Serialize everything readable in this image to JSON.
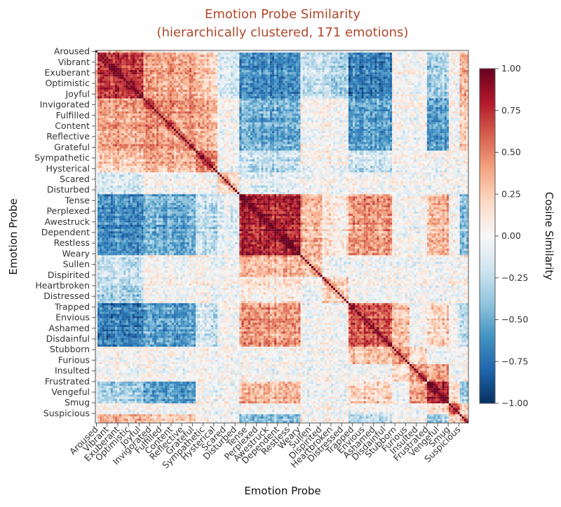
{
  "chart_data": {
    "type": "heatmap",
    "title": "Emotion Probe Similarity",
    "subtitle": "(hierarchically clustered, 171 emotions)",
    "xlabel": "Emotion Probe",
    "ylabel": "Emotion Probe",
    "n_emotions": 171,
    "tick_labels": [
      "Aroused",
      "Vibrant",
      "Exuberant",
      "Optimistic",
      "Joyful",
      "Invigorated",
      "Fulfilled",
      "Content",
      "Reflective",
      "Grateful",
      "Sympathetic",
      "Hysterical",
      "Scared",
      "Disturbed",
      "Tense",
      "Perplexed",
      "Awestruck",
      "Dependent",
      "Restless",
      "Weary",
      "Sullen",
      "Dispirited",
      "Heartbroken",
      "Distressed",
      "Trapped",
      "Envious",
      "Ashamed",
      "Disdainful",
      "Stubborn",
      "Furious",
      "Insulted",
      "Frustrated",
      "Vengeful",
      "Smug",
      "Suspicious"
    ],
    "clusters": [
      {
        "start": 0,
        "end": 1,
        "self": 0.6
      },
      {
        "start": 1,
        "end": 22,
        "self": 0.75
      },
      {
        "start": 22,
        "end": 46,
        "self": 0.45
      },
      {
        "start": 46,
        "end": 56,
        "self": 0.55
      },
      {
        "start": 56,
        "end": 66,
        "self": 0.2
      },
      {
        "start": 66,
        "end": 94,
        "self": 0.8
      },
      {
        "start": 94,
        "end": 104,
        "self": 0.3
      },
      {
        "start": 104,
        "end": 116,
        "self": 0.25
      },
      {
        "start": 116,
        "end": 136,
        "self": 0.65
      },
      {
        "start": 136,
        "end": 144,
        "self": 0.4
      },
      {
        "start": 144,
        "end": 152,
        "self": 0.45
      },
      {
        "start": 152,
        "end": 162,
        "self": 0.85
      },
      {
        "start": 162,
        "end": 167,
        "self": 0.55
      },
      {
        "start": 167,
        "end": 171,
        "self": 0.3
      }
    ],
    "cluster_similarity": [
      [
        1,
        0,
        0.25
      ],
      [
        1,
        2,
        0.4
      ],
      [
        1,
        3,
        0.25
      ],
      [
        2,
        3,
        0.35
      ],
      [
        1,
        5,
        -0.65
      ],
      [
        1,
        8,
        -0.7
      ],
      [
        2,
        5,
        -0.5
      ],
      [
        2,
        8,
        -0.55
      ],
      [
        1,
        6,
        -0.2
      ],
      [
        1,
        7,
        -0.3
      ],
      [
        1,
        11,
        -0.3
      ],
      [
        2,
        11,
        -0.55
      ],
      [
        5,
        8,
        0.45
      ],
      [
        5,
        6,
        0.35
      ],
      [
        5,
        11,
        0.35
      ],
      [
        8,
        11,
        0.25
      ],
      [
        5,
        7,
        0.1
      ],
      [
        8,
        9,
        0.3
      ],
      [
        9,
        10,
        0.2
      ],
      [
        10,
        11,
        0.45
      ],
      [
        11,
        12,
        0.2
      ],
      [
        1,
        13,
        0.35
      ],
      [
        2,
        13,
        0.25
      ],
      [
        5,
        13,
        -0.45
      ],
      [
        8,
        13,
        -0.3
      ],
      [
        11,
        13,
        -0.35
      ],
      [
        12,
        13,
        0.2
      ],
      [
        3,
        5,
        -0.25
      ],
      [
        3,
        8,
        -0.2
      ],
      [
        1,
        4,
        -0.15
      ],
      [
        4,
        5,
        -0.1
      ]
    ],
    "colorbar": {
      "label": "Cosine Similarity",
      "min": -1.0,
      "max": 1.0,
      "ticks": [
        1.0,
        0.75,
        0.5,
        0.25,
        0.0,
        -0.25,
        -0.5,
        -0.75,
        -1.0
      ],
      "tick_labels": [
        "1.00",
        "0.75",
        "0.50",
        "0.25",
        "0.00",
        "−0.25",
        "−0.50",
        "−0.75",
        "−1.00"
      ]
    },
    "colormap": [
      "#053061",
      "#2166ac",
      "#4393c3",
      "#92c5de",
      "#d1e5f0",
      "#f7f7f7",
      "#fddbc7",
      "#f4a582",
      "#d6604d",
      "#b2182b",
      "#67001f"
    ],
    "accent_color": "#b0472a"
  }
}
